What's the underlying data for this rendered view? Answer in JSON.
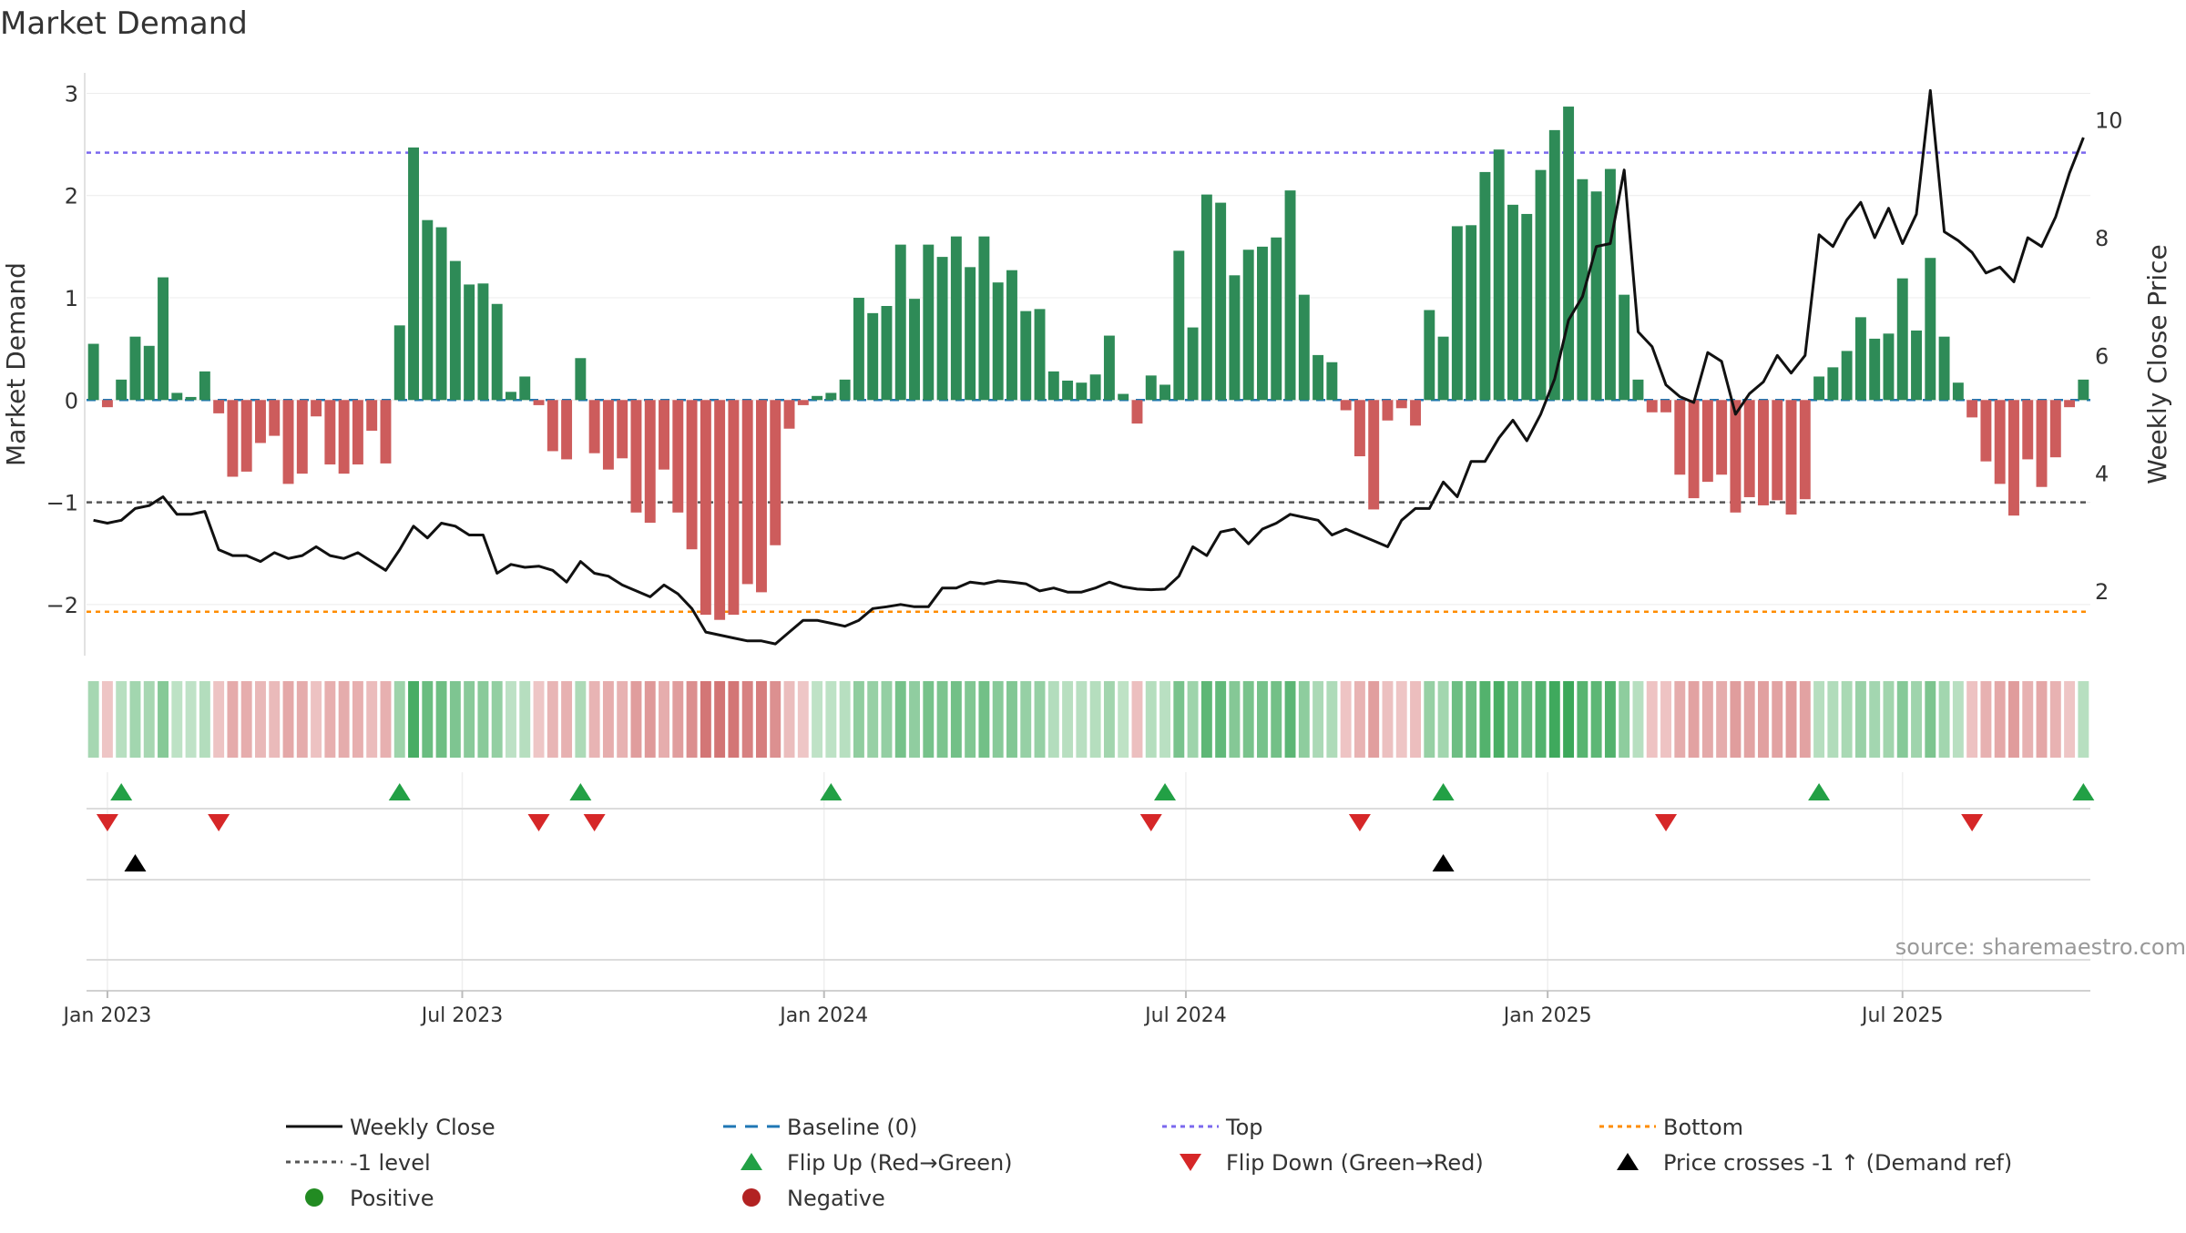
{
  "title": "Market Demand",
  "source": "source: sharemaestro.com",
  "colors": {
    "positive": "#2e8b57",
    "negative": "#cd5c5c",
    "price": "#111111",
    "top": "#7b68ee",
    "bottom": "#ff8c00",
    "minus1": "#555555",
    "baseline": "#1f77b4",
    "flip_up": "#22a045",
    "flip_down": "#d62728",
    "cross": "#000000",
    "positive_dot": "#228b22",
    "negative_dot": "#b22222"
  },
  "chart_data": {
    "type": "bar",
    "title": "Market Demand",
    "ylabel": "Market Demand",
    "y2label": "Weekly Close Price",
    "ylim": [
      -2.5,
      3.2
    ],
    "y2lim": [
      0.9,
      10.8
    ],
    "yticks": [
      3,
      2,
      1,
      0,
      -1,
      -2
    ],
    "ytick_labels": [
      "3",
      "2",
      "1",
      "0",
      "−1",
      "−2"
    ],
    "y2ticks": [
      10,
      8,
      6,
      4,
      2
    ],
    "y2tick_labels": [
      "10",
      "8",
      "6",
      "4",
      "2"
    ],
    "x_tick_labels": [
      "Jan 2023",
      "Jul 2023",
      "Jan 2024",
      "Jul 2024",
      "Jan 2025",
      "Jul 2025"
    ],
    "x_tick_weeks": [
      1.5,
      27,
      53,
      79,
      105,
      130.5
    ],
    "reference_lines": {
      "top": 2.42,
      "bottom": -2.07,
      "minus_one": -1,
      "baseline": 0
    },
    "demand": [
      0.55,
      -0.07,
      0.2,
      0.62,
      0.53,
      1.2,
      0.07,
      0.03,
      0.28,
      -0.13,
      -0.75,
      -0.7,
      -0.42,
      -0.35,
      -0.82,
      -0.72,
      -0.16,
      -0.63,
      -0.72,
      -0.63,
      -0.3,
      -0.62,
      0.73,
      2.47,
      1.76,
      1.69,
      1.36,
      1.13,
      1.14,
      0.94,
      0.08,
      0.23,
      -0.05,
      -0.5,
      -0.58,
      0.41,
      -0.52,
      -0.68,
      -0.57,
      -1.1,
      -1.2,
      -0.68,
      -1.1,
      -1.46,
      -2.1,
      -2.15,
      -2.1,
      -1.8,
      -1.88,
      -1.42,
      -0.28,
      -0.05,
      0.04,
      0.07,
      0.2,
      1.0,
      0.85,
      0.92,
      1.52,
      0.99,
      1.52,
      1.4,
      1.6,
      1.3,
      1.6,
      1.15,
      1.27,
      0.87,
      0.89,
      0.28,
      0.19,
      0.17,
      0.25,
      0.63,
      0.06,
      -0.23,
      0.24,
      0.15,
      1.46,
      0.71,
      2.01,
      1.93,
      1.22,
      1.47,
      1.5,
      1.59,
      2.05,
      1.03,
      0.44,
      0.37,
      -0.1,
      -0.55,
      -1.07,
      -0.2,
      -0.08,
      -0.25,
      0.88,
      0.62,
      1.7,
      1.71,
      2.23,
      2.45,
      1.91,
      1.82,
      2.25,
      2.64,
      2.87,
      2.16,
      2.04,
      2.26,
      1.03,
      0.2,
      -0.12,
      -0.12,
      -0.73,
      -0.96,
      -0.8,
      -0.73,
      -1.1,
      -0.95,
      -1.03,
      -0.98,
      -1.12,
      -0.97,
      0.23,
      0.32,
      0.48,
      0.81,
      0.6,
      0.65,
      1.19,
      0.68,
      1.39,
      0.62,
      0.17,
      -0.17,
      -0.6,
      -0.82,
      -1.13,
      -0.58,
      -0.85,
      -0.56,
      -0.07,
      0.2
    ],
    "price": [
      3.2,
      3.15,
      3.2,
      3.4,
      3.45,
      3.6,
      3.3,
      3.3,
      3.35,
      2.7,
      2.6,
      2.6,
      2.5,
      2.65,
      2.55,
      2.6,
      2.75,
      2.6,
      2.55,
      2.65,
      2.5,
      2.35,
      2.7,
      3.1,
      2.9,
      3.15,
      3.1,
      2.95,
      2.95,
      2.3,
      2.45,
      2.4,
      2.42,
      2.35,
      2.15,
      2.5,
      2.3,
      2.25,
      2.1,
      2.0,
      1.9,
      2.1,
      1.95,
      1.7,
      1.3,
      1.25,
      1.2,
      1.15,
      1.15,
      1.1,
      1.3,
      1.5,
      1.5,
      1.45,
      1.4,
      1.5,
      1.7,
      1.73,
      1.77,
      1.73,
      1.73,
      2.05,
      2.05,
      2.15,
      2.12,
      2.17,
      2.15,
      2.12,
      2.0,
      2.05,
      1.98,
      1.98,
      2.05,
      2.15,
      2.07,
      2.03,
      2.02,
      2.03,
      2.25,
      2.75,
      2.6,
      3.0,
      3.05,
      2.8,
      3.05,
      3.15,
      3.3,
      3.25,
      3.2,
      2.95,
      3.05,
      2.95,
      2.85,
      2.75,
      3.2,
      3.4,
      3.4,
      3.85,
      3.6,
      4.2,
      4.2,
      4.6,
      4.9,
      4.55,
      5.0,
      5.6,
      6.6,
      7.0,
      7.85,
      7.9,
      9.15,
      6.4,
      6.15,
      5.5,
      5.3,
      5.2,
      6.05,
      5.9,
      5.0,
      5.35,
      5.55,
      6.0,
      5.7,
      6.0,
      8.05,
      7.85,
      8.3,
      8.6,
      8.0,
      8.5,
      7.9,
      8.4,
      10.5,
      8.1,
      7.95,
      7.75,
      7.4,
      7.5,
      7.25,
      8.0,
      7.85,
      8.35,
      9.1,
      9.7
    ],
    "flip_up_weeks": [
      2,
      22,
      35,
      53,
      77,
      97,
      124,
      143
    ],
    "flip_down_weeks": [
      1,
      9,
      32,
      36,
      76,
      91,
      113,
      135
    ],
    "cross_weeks": [
      3,
      97
    ],
    "legend_position": "bottom"
  },
  "legend": {
    "items": [
      {
        "label": "Weekly Close",
        "kind": "line",
        "color": "#111111"
      },
      {
        "label": "Baseline (0)",
        "kind": "dash",
        "color": "#1f77b4"
      },
      {
        "label": "Top",
        "kind": "dot",
        "color": "#7b68ee"
      },
      {
        "label": "Bottom",
        "kind": "dot",
        "color": "#ff8c00"
      },
      {
        "label": "-1 level",
        "kind": "dot",
        "color": "#555555"
      },
      {
        "label": "Flip Up (Red→Green)",
        "kind": "tri-up",
        "color": "#22a045"
      },
      {
        "label": "Flip Down (Green→Red)",
        "kind": "tri-down",
        "color": "#d62728"
      },
      {
        "label": "Price crosses -1 ↑ (Demand ref)",
        "kind": "tri-up",
        "color": "#000000"
      },
      {
        "label": "Positive",
        "kind": "circle",
        "color": "#228b22"
      },
      {
        "label": "Negative",
        "kind": "circle",
        "color": "#b22222"
      }
    ]
  }
}
